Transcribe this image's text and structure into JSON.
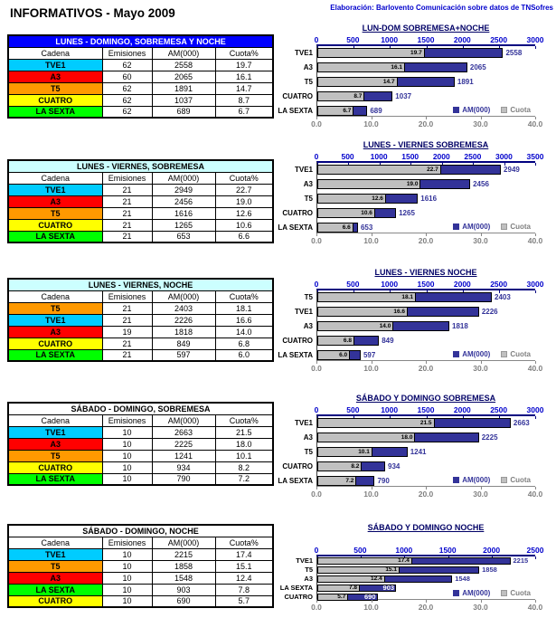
{
  "page": {
    "title": "INFORMATIVOS - Mayo 2009",
    "credit": "Elaboración: Barlovento Comunicación sobre datos de TNSofres"
  },
  "table": {
    "columns": [
      "Cadena",
      "Emisiones",
      "AM(000)",
      "Cuota%"
    ]
  },
  "legend": {
    "am": "AM(000)",
    "cuota": "Cuota"
  },
  "colors": {
    "channels": {
      "TVE1": "#00CCFF",
      "A3": "#FF0000",
      "T5": "#FF9900",
      "CUATRO": "#FFFF00",
      "LA SEXTA": "#00FF00"
    },
    "am_bar": "#333399",
    "cuota_bar": "#C0C0C0",
    "top_axis_text": "#0000CC",
    "bottom_axis_text": "#808080",
    "credit_text": "#0000CC",
    "blue_header_bg": "#0000FF",
    "cyan_header_bg": "#CCFFFF"
  },
  "chart_data": [
    {
      "type": "bar",
      "orientation": "horizontal",
      "table_title": "LUNES - DOMINGO, SOBREMESA Y NOCHE",
      "table_title_bg": "#0000FF",
      "table_title_color": "#FFFFFF",
      "title": "LUN-DOM SOBREMESA+NOCHE",
      "categories": [
        "TVE1",
        "A3",
        "T5",
        "CUATRO",
        "LA SEXTA"
      ],
      "emisiones": [
        62,
        60,
        62,
        62,
        62
      ],
      "series": [
        {
          "name": "AM(000)",
          "axis": "top",
          "max": 3000,
          "ticks": [
            0,
            500,
            1000,
            1500,
            2000,
            2500,
            3000
          ],
          "values": [
            2558,
            2065,
            1891,
            1037,
            689
          ]
        },
        {
          "name": "Cuota",
          "axis": "bottom",
          "max": 40,
          "ticks": [
            "0.0",
            "10.0",
            "20.0",
            "30.0",
            "40.0"
          ],
          "values": [
            "19.7",
            "16.1",
            "14.7",
            "8.7",
            "6.7"
          ]
        }
      ]
    },
    {
      "type": "bar",
      "orientation": "horizontal",
      "table_title": "LUNES - VIERNES, SOBREMESA",
      "table_title_bg": "#CCFFFF",
      "table_title_color": "#000000",
      "title": "LUNES - VIERNES SOBREMESA",
      "categories": [
        "TVE1",
        "A3",
        "T5",
        "CUATRO",
        "LA SEXTA"
      ],
      "emisiones": [
        21,
        21,
        21,
        21,
        21
      ],
      "series": [
        {
          "name": "AM(000)",
          "axis": "top",
          "max": 3500,
          "ticks": [
            0,
            500,
            1000,
            1500,
            2000,
            2500,
            3000,
            3500
          ],
          "values": [
            2949,
            2456,
            1616,
            1265,
            653
          ]
        },
        {
          "name": "Cuota",
          "axis": "bottom",
          "max": 40,
          "ticks": [
            "0.0",
            "10.0",
            "20.0",
            "30.0",
            "40.0"
          ],
          "values": [
            "22.7",
            "19.0",
            "12.6",
            "10.6",
            "6.6"
          ]
        }
      ]
    },
    {
      "type": "bar",
      "orientation": "horizontal",
      "table_title": "LUNES - VIERNES, NOCHE",
      "table_title_bg": "#CCFFFF",
      "table_title_color": "#000000",
      "title": "LUNES - VIERNES  NOCHE",
      "categories": [
        "T5",
        "TVE1",
        "A3",
        "CUATRO",
        "LA SEXTA"
      ],
      "emisiones": [
        21,
        21,
        19,
        21,
        21
      ],
      "series": [
        {
          "name": "AM(000)",
          "axis": "top",
          "max": 3000,
          "ticks": [
            0,
            500,
            1000,
            1500,
            2000,
            2500,
            3000
          ],
          "values": [
            2403,
            2226,
            1818,
            849,
            597
          ]
        },
        {
          "name": "Cuota",
          "axis": "bottom",
          "max": 40,
          "ticks": [
            "0.0",
            "10.0",
            "20.0",
            "30.0",
            "40.0"
          ],
          "values": [
            "18.1",
            "16.6",
            "14.0",
            "6.8",
            "6.0"
          ]
        }
      ]
    },
    {
      "type": "bar",
      "orientation": "horizontal",
      "table_title": "SÁBADO - DOMINGO, SOBREMESA",
      "table_title_bg": "#FFFFFF",
      "table_title_color": "#000000",
      "title": "SÁBADO Y DOMINGO SOBREMESA",
      "categories": [
        "TVE1",
        "A3",
        "T5",
        "CUATRO",
        "LA SEXTA"
      ],
      "emisiones": [
        10,
        10,
        10,
        10,
        10
      ],
      "series": [
        {
          "name": "AM(000)",
          "axis": "top",
          "max": 3000,
          "ticks": [
            0,
            500,
            1000,
            1500,
            2000,
            2500,
            3000
          ],
          "values": [
            2663,
            2225,
            1241,
            934,
            790
          ]
        },
        {
          "name": "Cuota",
          "axis": "bottom",
          "max": 40,
          "ticks": [
            "0.0",
            "10.0",
            "20.0",
            "30.0",
            "40.0"
          ],
          "values": [
            "21.5",
            "18.0",
            "10.1",
            "8.2",
            "7.2"
          ]
        }
      ]
    },
    {
      "type": "bar",
      "orientation": "horizontal",
      "table_title": "SÁBADO - DOMINGO, NOCHE",
      "table_title_bg": "#FFFFFF",
      "table_title_color": "#000000",
      "title": "SÁBADO Y DOMINGO  NOCHE",
      "categories": [
        "TVE1",
        "T5",
        "A3",
        "LA SEXTA",
        "CUATRO"
      ],
      "emisiones": [
        10,
        10,
        10,
        10,
        10
      ],
      "am_label_inside": [
        false,
        false,
        false,
        true,
        true
      ],
      "series": [
        {
          "name": "AM(000)",
          "axis": "top",
          "max": 2500,
          "ticks": [
            0,
            500,
            1000,
            1500,
            2000,
            2500
          ],
          "values": [
            2215,
            1858,
            1548,
            903,
            690
          ]
        },
        {
          "name": "Cuota",
          "axis": "bottom",
          "max": 40,
          "ticks": [
            "0.0",
            "10.0",
            "20.0",
            "30.0",
            "40.0"
          ],
          "values": [
            "17.4",
            "15.1",
            "12.4",
            "7.8",
            "5.7"
          ]
        }
      ]
    }
  ]
}
